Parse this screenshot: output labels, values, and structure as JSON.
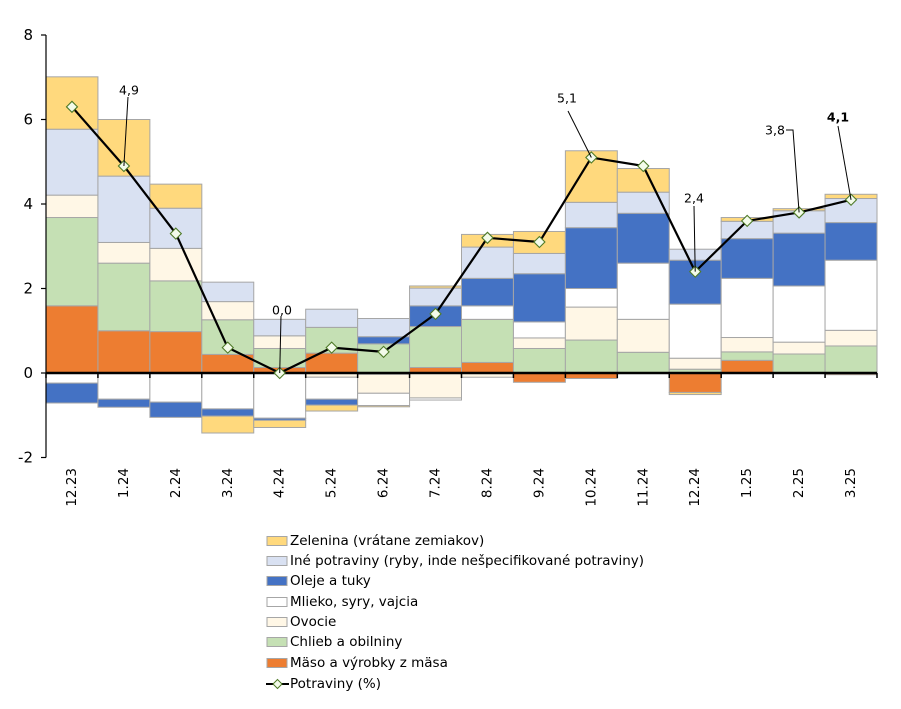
{
  "chart_data": {
    "type": "bar",
    "subtype": "stacked-bar-with-line",
    "title": "",
    "xlabel": "",
    "ylabel": "",
    "categories": [
      "12.23",
      "1.24",
      "2.24",
      "3.24",
      "4.24",
      "5.24",
      "6.24",
      "7.24",
      "8.24",
      "9.24",
      "10.24",
      "11.24",
      "12.24",
      "1.25",
      "2.25",
      "3.25"
    ],
    "ylim": [
      -2,
      8
    ],
    "yticks": [
      -2,
      0,
      2,
      4,
      6,
      8
    ],
    "ytick_labels": [
      "-2",
      "0",
      "2",
      "4",
      "6",
      "8"
    ],
    "grid": false,
    "legend_position": "bottom",
    "series": [
      {
        "name": "Mäso a výrobky z mäsa",
        "type": "bar",
        "color": "#ED7D31",
        "values": [
          1.59,
          1.0,
          0.98,
          0.44,
          0.13,
          0.47,
          -0.03,
          0.13,
          0.25,
          -0.22,
          -0.13,
          0.0,
          -0.46,
          0.3,
          0.0,
          -0.04
        ]
      },
      {
        "name": "Chlieb a obilniny",
        "type": "bar",
        "color": "#C5E0B4",
        "values": [
          2.09,
          1.6,
          1.2,
          0.82,
          0.45,
          0.61,
          0.69,
          0.97,
          1.02,
          0.58,
          0.78,
          0.49,
          0.09,
          0.2,
          0.45,
          0.64
        ]
      },
      {
        "name": "Ovocie",
        "type": "bar",
        "color": "#FFF7E6",
        "values": [
          0.53,
          0.49,
          0.77,
          0.43,
          0.3,
          -0.1,
          -0.45,
          -0.59,
          -0.1,
          0.25,
          0.78,
          0.78,
          0.26,
          0.34,
          0.28,
          0.37
        ]
      },
      {
        "name": "Mlieko, syry, vajcia",
        "type": "bar",
        "color": "#FFFFFF",
        "values": [
          -0.24,
          -0.62,
          -0.69,
          -0.85,
          -1.07,
          -0.52,
          -0.29,
          -0.05,
          0.32,
          0.38,
          0.44,
          1.33,
          1.28,
          1.4,
          1.33,
          1.66
        ]
      },
      {
        "name": "Oleje a tuky",
        "type": "bar",
        "color": "#4472C4",
        "values": [
          -0.47,
          -0.19,
          -0.36,
          -0.17,
          -0.05,
          -0.14,
          0.17,
          0.49,
          0.65,
          1.14,
          1.44,
          1.18,
          1.04,
          0.94,
          1.25,
          0.89
        ]
      },
      {
        "name": "Iné potraviny (ryby, inde nešpecifikované potraviny)",
        "type": "bar",
        "color": "#D9E1F2",
        "values": [
          1.56,
          1.57,
          0.95,
          0.46,
          0.39,
          0.43,
          0.43,
          0.42,
          0.74,
          0.48,
          0.6,
          0.5,
          0.26,
          0.41,
          0.53,
          0.57
        ]
      },
      {
        "name": "Zelenina (vrátane zemiakov)",
        "type": "bar",
        "color": "#FFD97D",
        "values": [
          1.24,
          1.34,
          0.57,
          -0.4,
          -0.17,
          -0.14,
          -0.03,
          0.05,
          0.3,
          0.52,
          1.22,
          0.56,
          -0.05,
          0.09,
          0.05,
          0.1
        ]
      },
      {
        "name": "Potraviny (%)",
        "type": "line",
        "color": "#000000",
        "values": [
          6.3,
          4.9,
          3.3,
          0.6,
          0.0,
          0.6,
          0.5,
          1.4,
          3.2,
          3.1,
          5.1,
          4.9,
          2.4,
          3.6,
          3.8,
          4.1
        ]
      }
    ],
    "data_labels": [
      {
        "category": "1.24",
        "series": "Potraviny (%)",
        "text": "4,9"
      },
      {
        "category": "4.24",
        "series": "Potraviny (%)",
        "text": "0,0"
      },
      {
        "category": "10.24",
        "series": "Potraviny (%)",
        "text": "5,1"
      },
      {
        "category": "12.24",
        "series": "Potraviny (%)",
        "text": "2,4"
      },
      {
        "category": "2.25",
        "series": "Potraviny (%)",
        "text": "3,8"
      },
      {
        "category": "3.25",
        "series": "Potraviny (%)",
        "text": "4,1"
      }
    ]
  }
}
